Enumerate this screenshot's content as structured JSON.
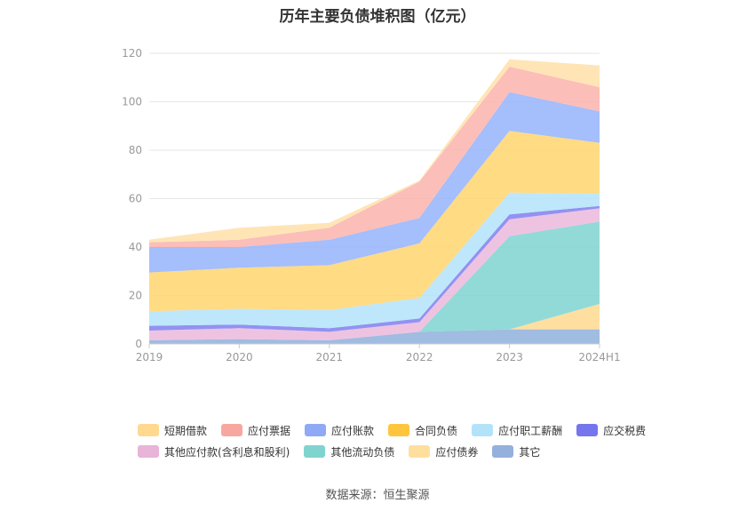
{
  "title": "历年主要负债堆积图（亿元）",
  "source": "数据来源：恒生聚源",
  "chart_data": {
    "type": "area",
    "stacked": true,
    "categories": [
      "2019",
      "2020",
      "2021",
      "2022",
      "2023",
      "2024H1"
    ],
    "ylim": [
      0,
      120
    ],
    "yticks": [
      0,
      20,
      40,
      60,
      80,
      100,
      120
    ],
    "grid": true,
    "legend_position": "bottom",
    "series": [
      {
        "name": "其它",
        "color": "#8fb0dc",
        "values": [
          1.5,
          2,
          1.5,
          5,
          6,
          6
        ]
      },
      {
        "name": "应付债券",
        "color": "#ffd98f",
        "values": [
          0,
          0,
          0,
          0,
          0,
          10.5
        ]
      },
      {
        "name": "其他流动负债",
        "color": "#7fd4d0",
        "values": [
          0,
          0,
          0,
          0,
          38.5,
          34
        ]
      },
      {
        "name": "其他应付款(含利息和股利)",
        "color": "#ebb9dc",
        "values": [
          4,
          4.5,
          3.5,
          4,
          7,
          5.5
        ]
      },
      {
        "name": "应交税费",
        "color": "#7f7fee",
        "values": [
          2,
          1.5,
          1.5,
          1.5,
          2,
          1
        ]
      },
      {
        "name": "应付职工薪酬",
        "color": "#b3e3fb",
        "values": [
          6,
          6.5,
          7.5,
          8.5,
          9,
          5
        ]
      },
      {
        "name": "合同负债",
        "color": "#ffd56f",
        "values": [
          16,
          17,
          18.5,
          22.5,
          25.5,
          21
        ]
      },
      {
        "name": "应付账款",
        "color": "#95b3fb",
        "values": [
          10.5,
          8.5,
          10.5,
          10.5,
          16,
          13
        ]
      },
      {
        "name": "应付票据",
        "color": "#fbb3ad",
        "values": [
          2,
          3,
          5,
          15,
          10.5,
          10
        ]
      },
      {
        "name": "短期借款",
        "color": "#ffe0a8",
        "values": [
          1,
          5,
          2,
          0.5,
          3,
          9
        ]
      }
    ],
    "legend_order": [
      "短期借款",
      "应付票据",
      "应付账款",
      "合同负债",
      "应付职工薪酬",
      "应交税费",
      "其他应付款(含利息和股利)",
      "其他流动负债",
      "应付债券",
      "其它"
    ],
    "legend_colors": {
      "短期借款": "#ffd98f",
      "应付票据": "#f8a7a0",
      "应付账款": "#8fa9f6",
      "合同负债": "#ffc63d",
      "应付职工薪酬": "#b3e3fb",
      "应交税费": "#7575ee",
      "其他应付款(含利息和股利)": "#e8b4d8",
      "其他流动负债": "#7fd4d0",
      "应付债券": "#ffdf9e",
      "其它": "#94b0dc"
    }
  }
}
